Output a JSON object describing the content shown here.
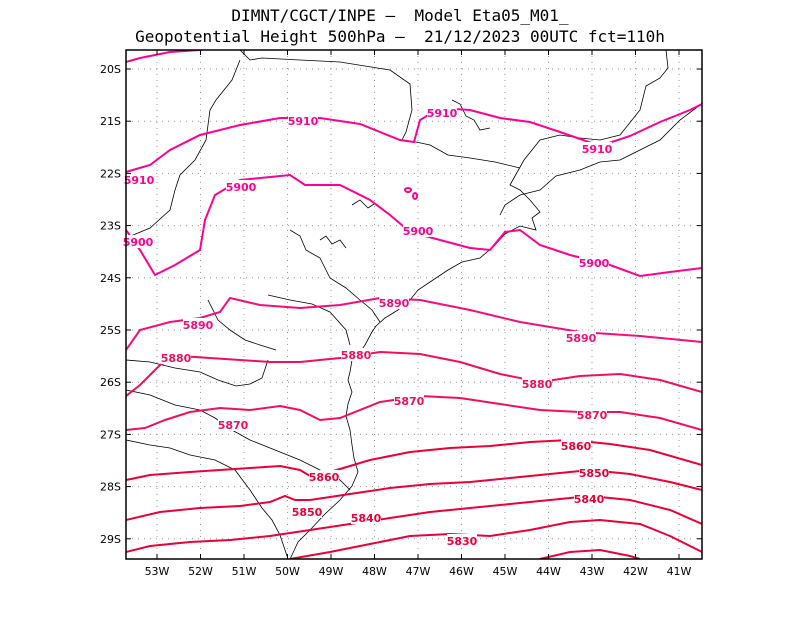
{
  "title": {
    "line1": "DIMNT/CGCT/INPE —  Model Eta05_M01_",
    "line2": "Geopotential Height 500hPa —  21/12/2023 00UTC fct=110h"
  },
  "colors": {
    "contour_light": "#ff0090",
    "contour_mid": "#f0105a",
    "contour_dark": "#e8003a",
    "border": "#000000",
    "grid": "#999999"
  },
  "lon_labels": [
    "53W",
    "52W",
    "51W",
    "50W",
    "49W",
    "48W",
    "47W",
    "46W",
    "45W",
    "44W",
    "43W",
    "42W",
    "41W"
  ],
  "lat_labels": [
    "20S",
    "21S",
    "22S",
    "23S",
    "24S",
    "25S",
    "26S",
    "27S",
    "28S",
    "29S"
  ],
  "contour_labels": [
    "5910",
    "5910",
    "5910",
    "5910",
    "5900",
    "5900",
    "5900",
    "5900",
    "5890",
    "5890",
    "5890",
    "5880",
    "5880",
    "5880",
    "5870",
    "5870",
    "5870",
    "5860",
    "5860",
    "5850",
    "5850",
    "5840",
    "5840",
    "5830"
  ]
}
